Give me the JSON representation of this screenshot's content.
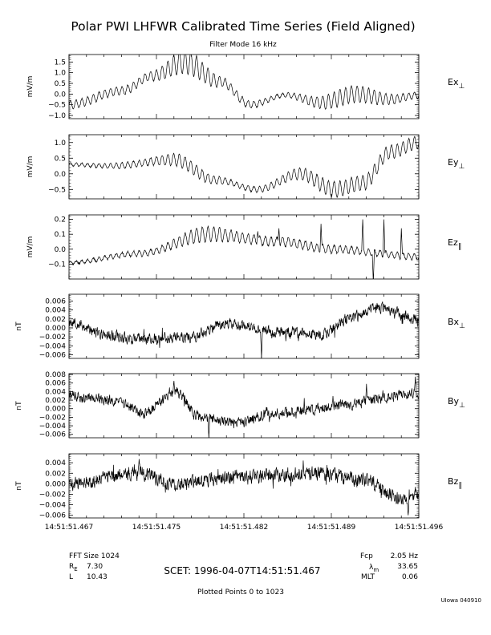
{
  "figure": {
    "title": "Polar PWI LHFWR Calibrated Time Series (Field Aligned)",
    "subtitle": "Filter Mode 16 kHz",
    "credit": "UIowa 040910"
  },
  "chart_data": {
    "type": "line",
    "x_tick_labels": [
      "14:51:51.467",
      "14:51:51.475",
      "14:51:51.482",
      "14:51:51.489",
      "14:51:51.496"
    ],
    "panels": [
      {
        "id": "ex",
        "label_main": "Ex",
        "label_sub": "⊥",
        "ylabel": "mV/m",
        "ylim": [
          -1.15,
          1.85
        ],
        "ticks": [
          -1.0,
          -0.5,
          0.0,
          0.5,
          1.0,
          1.5
        ],
        "tick_labels": [
          "−1.0",
          "−0.5",
          "0.0",
          "0.5",
          "1.0",
          "1.5"
        ],
        "waveform": {
          "kind": "e",
          "cycles": 61,
          "noise": 0.03,
          "seed": 11,
          "envelope": [
            [
              0,
              -0.5
            ],
            [
              0.15,
              0.15
            ],
            [
              0.24,
              0.85
            ],
            [
              0.33,
              1.5
            ],
            [
              0.43,
              0.6
            ],
            [
              0.52,
              -0.5
            ],
            [
              0.62,
              -0.05
            ],
            [
              0.72,
              -0.4
            ],
            [
              0.82,
              0.0
            ],
            [
              0.92,
              -0.25
            ],
            [
              1.0,
              -0.05
            ]
          ],
          "amp": [
            [
              0,
              0.2
            ],
            [
              0.22,
              0.2
            ],
            [
              0.34,
              0.55
            ],
            [
              0.46,
              0.2
            ],
            [
              0.6,
              0.1
            ],
            [
              0.8,
              0.4
            ],
            [
              1.0,
              0.15
            ]
          ]
        }
      },
      {
        "id": "ey",
        "label_main": "Ey",
        "label_sub": "⊥",
        "ylabel": "mV/m",
        "ylim": [
          -0.8,
          1.25
        ],
        "ticks": [
          -0.5,
          0.0,
          0.5,
          1.0
        ],
        "tick_labels": [
          "−0.5",
          "0.0",
          "0.5",
          "1.0"
        ],
        "waveform": {
          "kind": "e",
          "cycles": 61,
          "noise": 0.02,
          "seed": 23,
          "envelope": [
            [
              0,
              0.3
            ],
            [
              0.12,
              0.25
            ],
            [
              0.3,
              0.45
            ],
            [
              0.42,
              -0.2
            ],
            [
              0.54,
              -0.5
            ],
            [
              0.66,
              0.0
            ],
            [
              0.76,
              -0.5
            ],
            [
              0.84,
              -0.3
            ],
            [
              0.92,
              0.7
            ],
            [
              1.0,
              1.0
            ]
          ],
          "amp": [
            [
              0,
              0.05
            ],
            [
              0.2,
              0.1
            ],
            [
              0.32,
              0.2
            ],
            [
              0.5,
              0.08
            ],
            [
              0.78,
              0.25
            ],
            [
              1.0,
              0.2
            ]
          ]
        }
      },
      {
        "id": "ez",
        "label_main": "Ez",
        "label_sub": "∥",
        "ylabel": "mV/m",
        "ylim": [
          -0.2,
          0.23
        ],
        "ticks": [
          -0.1,
          0.0,
          0.1,
          0.2
        ],
        "tick_labels": [
          "−0.1",
          "0.0",
          "0.1",
          "0.2"
        ],
        "waveform": {
          "kind": "e",
          "cycles": 61,
          "noise": 0.006,
          "seed": 37,
          "envelope": [
            [
              0,
              -0.09
            ],
            [
              0.2,
              -0.03
            ],
            [
              0.4,
              0.1
            ],
            [
              0.6,
              0.05
            ],
            [
              0.75,
              0.0
            ],
            [
              1.0,
              -0.05
            ]
          ],
          "amp": [
            [
              0,
              0.01
            ],
            [
              0.25,
              0.02
            ],
            [
              0.38,
              0.05
            ],
            [
              0.55,
              0.03
            ],
            [
              1.0,
              0.02
            ]
          ],
          "spikes": [
            [
              0.54,
              0.12
            ],
            [
              0.6,
              0.14
            ],
            [
              0.72,
              0.17
            ],
            [
              0.84,
              0.2
            ],
            [
              0.87,
              -0.23
            ],
            [
              0.9,
              0.2
            ],
            [
              0.95,
              0.14
            ]
          ]
        }
      },
      {
        "id": "bx",
        "label_main": "Bx",
        "label_sub": "⊥",
        "ylabel": "nT",
        "ylim": [
          -0.0068,
          0.0075
        ],
        "ticks": [
          -0.006,
          -0.004,
          -0.002,
          0.0,
          0.002,
          0.004,
          0.006
        ],
        "tick_labels": [
          "−0.006",
          "−0.004",
          "−0.002",
          "0.000",
          "0.002",
          "0.004",
          "0.006"
        ],
        "waveform": {
          "kind": "b",
          "noise": 0.0011,
          "seed": 53,
          "envelope": [
            [
              0,
              0.0015
            ],
            [
              0.1,
              -0.0015
            ],
            [
              0.2,
              -0.0025
            ],
            [
              0.35,
              -0.002
            ],
            [
              0.45,
              0.001
            ],
            [
              0.6,
              -0.001
            ],
            [
              0.72,
              -0.0015
            ],
            [
              0.8,
              0.002
            ],
            [
              0.88,
              0.0045
            ],
            [
              1.0,
              0.002
            ]
          ],
          "spikes": [
            [
              0.55,
              -0.0068
            ]
          ]
        }
      },
      {
        "id": "by",
        "label_main": "By",
        "label_sub": "⊥",
        "ylabel": "nT",
        "ylim": [
          -0.0068,
          0.0082
        ],
        "ticks": [
          -0.006,
          -0.004,
          -0.002,
          0.0,
          0.002,
          0.004,
          0.006,
          0.008
        ],
        "tick_labels": [
          "−0.006",
          "−0.004",
          "−0.002",
          "0.000",
          "0.002",
          "0.004",
          "0.006",
          "0.008"
        ],
        "waveform": {
          "kind": "b",
          "noise": 0.0011,
          "seed": 71,
          "envelope": [
            [
              0,
              0.003
            ],
            [
              0.12,
              0.002
            ],
            [
              0.22,
              -0.001
            ],
            [
              0.3,
              0.004
            ],
            [
              0.38,
              -0.002
            ],
            [
              0.48,
              -0.0035
            ],
            [
              0.58,
              -0.001
            ],
            [
              0.7,
              0.0
            ],
            [
              0.8,
              0.001
            ],
            [
              0.9,
              0.0025
            ],
            [
              1.0,
              0.0035
            ]
          ],
          "spikes": [
            [
              0.3,
              0.0065
            ],
            [
              0.85,
              0.0058
            ],
            [
              0.99,
              0.0075
            ],
            [
              0.4,
              -0.0068
            ]
          ]
        }
      },
      {
        "id": "bz",
        "label_main": "Bz",
        "label_sub": "∥",
        "ylabel": "nT",
        "ylim": [
          -0.0065,
          0.0057
        ],
        "ticks": [
          -0.006,
          -0.004,
          -0.002,
          0.0,
          0.002,
          0.004
        ],
        "tick_labels": [
          "−0.006",
          "−0.004",
          "−0.002",
          "0.000",
          "0.002",
          "0.004"
        ],
        "waveform": {
          "kind": "b",
          "noise": 0.0012,
          "seed": 89,
          "envelope": [
            [
              0,
              0.0
            ],
            [
              0.2,
              0.002
            ],
            [
              0.3,
              0.0
            ],
            [
              0.5,
              0.0015
            ],
            [
              0.7,
              0.002
            ],
            [
              0.85,
              0.0005
            ],
            [
              0.95,
              -0.003
            ],
            [
              1.0,
              -0.002
            ]
          ],
          "spikes": [
            [
              0.2,
              0.0047
            ],
            [
              0.97,
              -0.006
            ]
          ]
        }
      }
    ]
  },
  "footer": {
    "fft_size": "FFT Size 1024",
    "re_label": "R",
    "re_sub": "E",
    "re_value": "7.30",
    "l_label": "L",
    "l_value": "10.43",
    "scet": "SCET:  1996-04-07T14:51:51.467",
    "fcp_label": "Fcp",
    "fcp_value": "2.05 Hz",
    "lambda_label": "λ",
    "lambda_sub": "m",
    "lambda_value": "33.65",
    "mlt_label": "MLT",
    "mlt_value": "0.06",
    "plotted": "Plotted Points 0 to  1023"
  }
}
